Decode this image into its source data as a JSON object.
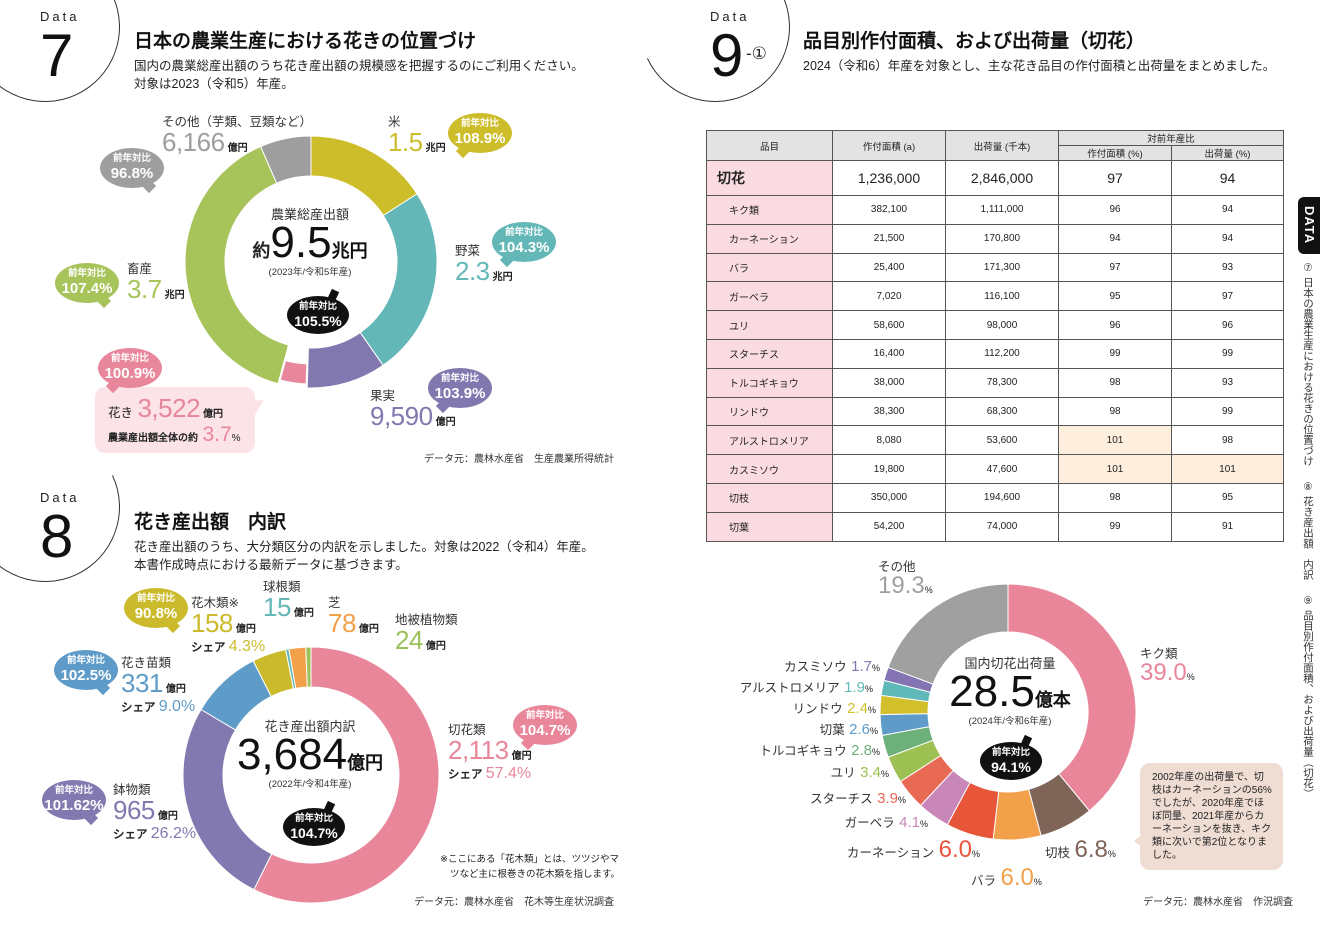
{
  "data_label": "Data",
  "section7": {
    "number": "7",
    "title": "日本の農業生産における花きの位置づけ",
    "desc": [
      "国内の農業総産出額のうち花き産出額の規模感を把握するのにご利用ください。",
      "対象は2023（令和5）年産。"
    ],
    "center": {
      "label": "農業総産出額",
      "prefix": "約",
      "value": "9.5",
      "unit": "兆円",
      "year": "(2023年/令和5年産)",
      "yoy_label": "前年対比",
      "yoy": "105.5%"
    },
    "yoy_label": "前年対比",
    "segments": [
      {
        "name": "米",
        "value": "1.5",
        "unit": "兆円",
        "yoy": "108.9%",
        "color": "#cdbd2b"
      },
      {
        "name": "野菜",
        "value": "2.3",
        "unit": "兆円",
        "yoy": "104.3%",
        "color": "#63b7b6"
      },
      {
        "name": "果実",
        "value": "9,590",
        "unit": "億円",
        "yoy": "103.9%",
        "color": "#8278b0"
      },
      {
        "name": "花き",
        "value": "3,522",
        "unit": "億円",
        "yoy": "100.9%",
        "color": "#e8869b"
      },
      {
        "name": "畜産",
        "value": "3.7",
        "unit": "兆円",
        "yoy": "107.4%",
        "color": "#a6c45a"
      },
      {
        "name": "その他（芋類、豆類など）",
        "value": "6,166",
        "unit": "億円",
        "yoy": "96.8%",
        "color": "#9e9e9e"
      }
    ],
    "flower_share_label": "農業産出額全体の約",
    "flower_share": "3.7",
    "pct": "%",
    "source": "データ元：農林水産省　生産農業所得統計"
  },
  "section8": {
    "number": "8",
    "title": "花き産出額　内訳",
    "desc": [
      "花き産出額のうち、大分類区分の内訳を示しました。対象は2022（令和4）年産。",
      "本書作成時点における最新データに基づきます。"
    ],
    "center": {
      "label": "花き産出額内訳",
      "value": "3,684",
      "unit": "億円",
      "year": "(2022年/令和4年産)",
      "yoy_label": "前年対比",
      "yoy": "104.7%"
    },
    "yoy_label": "前年対比",
    "share_label": "シェア",
    "segments": [
      {
        "name": "切花類",
        "value": "2,113",
        "unit": "億円",
        "share": "57.4%",
        "yoy": "104.7%",
        "color": "#e9869a"
      },
      {
        "name": "鉢物類",
        "value": "965",
        "unit": "億円",
        "share": "26.2%",
        "yoy": "101.62%",
        "color": "#8279b0"
      },
      {
        "name": "花き苗類",
        "value": "331",
        "unit": "億円",
        "share": "9.0%",
        "yoy": "102.5%",
        "color": "#5f9bc8"
      },
      {
        "name": "花木類※",
        "value": "158",
        "unit": "億円",
        "share": "4.3%",
        "yoy": "90.8%",
        "color": "#cbbb2c"
      },
      {
        "name": "球根類",
        "value": "15",
        "unit": "億円",
        "color": "#63b7b6"
      },
      {
        "name": "芝",
        "value": "78",
        "unit": "億円",
        "color": "#f2a04a"
      },
      {
        "name": "地被植物類",
        "value": "24",
        "unit": "億円",
        "color": "#9cc05a"
      }
    ],
    "note": [
      "※ここにある「花木類」とは、ツツジやマ",
      "ツなど主に根巻きの花木類を指します。"
    ],
    "source": "データ元：農林水産省　花木等生産状況調査"
  },
  "section9": {
    "number": "9",
    "suffix": "-①",
    "title": "品目別作付面積、および出荷量（切花）",
    "desc": "2024（令和6）年産を対象とし、主な花き品目の作付面積と出荷量をまとめました。",
    "table": {
      "headers": {
        "item": "品目",
        "area": "作付面積 (a)",
        "shipment": "出荷量 (千本)",
        "ratio": "対前年産比",
        "ratio_area": "作付面積 (%)",
        "ratio_shipment": "出荷量 (%)"
      },
      "total": {
        "item": "切花",
        "area": "1,236,000",
        "shipment": "2,846,000",
        "ratio_area": "97",
        "ratio_shipment": "94"
      },
      "rows": [
        {
          "item": "キク類",
          "area": "382,100",
          "shipment": "1,111,000",
          "ratio_area": "96",
          "ratio_shipment": "94"
        },
        {
          "item": "カーネーション",
          "area": "21,500",
          "shipment": "170,800",
          "ratio_area": "94",
          "ratio_shipment": "94"
        },
        {
          "item": "バラ",
          "area": "25,400",
          "shipment": "171,300",
          "ratio_area": "97",
          "ratio_shipment": "93"
        },
        {
          "item": "ガーベラ",
          "area": "7,020",
          "shipment": "116,100",
          "ratio_area": "95",
          "ratio_shipment": "97"
        },
        {
          "item": "ユリ",
          "area": "58,600",
          "shipment": "98,000",
          "ratio_area": "96",
          "ratio_shipment": "96"
        },
        {
          "item": "スターチス",
          "area": "16,400",
          "shipment": "112,200",
          "ratio_area": "99",
          "ratio_shipment": "99"
        },
        {
          "item": "トルコギキョウ",
          "area": "38,000",
          "shipment": "78,300",
          "ratio_area": "98",
          "ratio_shipment": "93"
        },
        {
          "item": "リンドウ",
          "area": "38,300",
          "shipment": "68,300",
          "ratio_area": "98",
          "ratio_shipment": "99"
        },
        {
          "item": "アルストロメリア",
          "area": "8,080",
          "shipment": "53,600",
          "ratio_area": "101",
          "ratio_shipment": "98",
          "highlight": [
            "ratio_area"
          ]
        },
        {
          "item": "カスミソウ",
          "area": "19,800",
          "shipment": "47,600",
          "ratio_area": "101",
          "ratio_shipment": "101",
          "highlight": [
            "ratio_area",
            "ratio_shipment"
          ]
        },
        {
          "item": "切枝",
          "area": "350,000",
          "shipment": "194,600",
          "ratio_area": "98",
          "ratio_shipment": "95"
        },
        {
          "item": "切葉",
          "area": "54,200",
          "shipment": "74,000",
          "ratio_area": "99",
          "ratio_shipment": "91"
        }
      ]
    },
    "center": {
      "label": "国内切花出荷量",
      "value": "28.5",
      "unit": "億本",
      "year": "(2024年/令和6年産)",
      "yoy_label": "前年対比",
      "yoy": "94.1%"
    },
    "segments": [
      {
        "name": "キク類",
        "value": "39.0",
        "color": "#e9869a"
      },
      {
        "name": "切枝",
        "value": "6.8",
        "color": "#7f6458"
      },
      {
        "name": "バラ",
        "value": "6.0",
        "color": "#f3a04a"
      },
      {
        "name": "カーネーション",
        "value": "6.0",
        "color": "#e8563a"
      },
      {
        "name": "ガーベラ",
        "value": "4.1",
        "color": "#c887b8"
      },
      {
        "name": "スターチス",
        "value": "3.9",
        "color": "#e86a55"
      },
      {
        "name": "ユリ",
        "value": "3.4",
        "color": "#9cc152"
      },
      {
        "name": "トルコギキョウ",
        "value": "2.8",
        "color": "#6db07a"
      },
      {
        "name": "切葉",
        "value": "2.6",
        "color": "#5f9bc8"
      },
      {
        "name": "リンドウ",
        "value": "2.4",
        "color": "#d2bf2c"
      },
      {
        "name": "アルストロメリア",
        "value": "1.9",
        "color": "#5fb9b9"
      },
      {
        "name": "カスミソウ",
        "value": "1.7",
        "color": "#8474b3"
      },
      {
        "name": "その他",
        "value": "19.3",
        "color": "#a0a0a0"
      }
    ],
    "pct": "%",
    "note": "2002年産の出荷量で、切枝はカーネーションの56%でしたが、2020年産でほぼ同量、2021年産からカーネーションを抜き、キク類に次いで第2位となりました。",
    "source": "データ元：農林水産省　作況調査"
  },
  "sidebar": {
    "tab": "DATA",
    "items": [
      "⑦ 日本の農業生産における花きの位置づけ",
      "⑧ 花き産出額　内訳",
      "⑨ 品目別作付面積、および出荷量（切花）"
    ]
  },
  "chart_data": [
    {
      "type": "pie",
      "title": "農業総産出額",
      "categories": [
        "米",
        "野菜",
        "果実",
        "花き",
        "畜産",
        "その他（芋類、豆類など）"
      ],
      "values_oku_yen": [
        15000,
        23000,
        9590,
        3522,
        37000,
        6166
      ],
      "yoy_percent": [
        108.9,
        104.3,
        103.9,
        100.9,
        107.4,
        96.8
      ]
    },
    {
      "type": "pie",
      "title": "花き産出額内訳",
      "categories": [
        "切花類",
        "鉢物類",
        "花き苗類",
        "花木類",
        "球根類",
        "芝",
        "地被植物類"
      ],
      "values_oku_yen": [
        2113,
        965,
        331,
        158,
        15,
        78,
        24
      ]
    },
    {
      "type": "pie",
      "title": "国内切花出荷量",
      "categories": [
        "キク類",
        "切枝",
        "バラ",
        "カーネーション",
        "ガーベラ",
        "スターチス",
        "ユリ",
        "トルコギキョウ",
        "切葉",
        "リンドウ",
        "アルストロメリア",
        "カスミソウ",
        "その他"
      ],
      "values_percent": [
        39.0,
        6.8,
        6.0,
        6.0,
        4.1,
        3.9,
        3.4,
        2.8,
        2.6,
        2.4,
        1.9,
        1.7,
        19.3
      ]
    }
  ]
}
